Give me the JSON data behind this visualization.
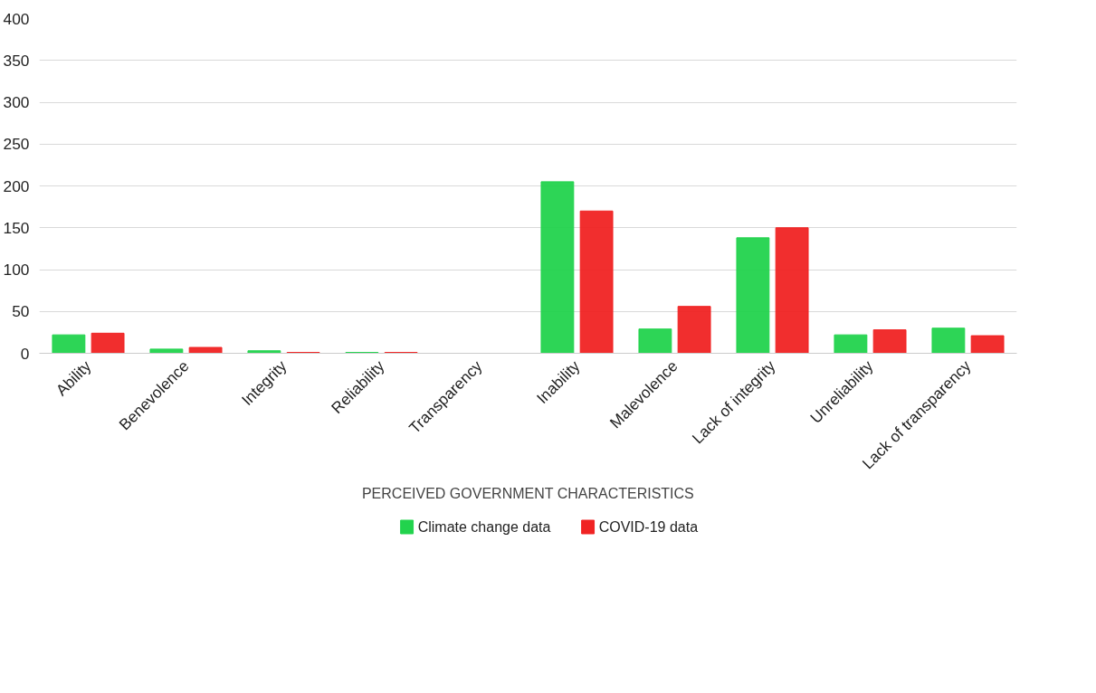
{
  "chart_data": {
    "type": "bar",
    "xlabel": "PERCEIVED GOVERNMENT CHARACTERISTICS",
    "categories": [
      "Ability",
      "Benevolence",
      "Integrity",
      "Reliability",
      "Transparency",
      "Inability",
      "Malevolence",
      "Lack of integrity",
      "Unreliability",
      "Lack of transparency"
    ],
    "series": [
      {
        "name": "Climate change data",
        "color": "#22d34d",
        "values": [
          22,
          5,
          3,
          1,
          0,
          205,
          29,
          138,
          22,
          30
        ]
      },
      {
        "name": "COVID-19 data",
        "color": "#f02323",
        "values": [
          24,
          7,
          1,
          1,
          0,
          170,
          56,
          150,
          28,
          21
        ]
      }
    ],
    "ylim": [
      0,
      400
    ],
    "yticks": [
      0,
      50,
      100,
      150,
      200,
      250,
      300,
      350,
      400
    ],
    "grid": "y",
    "legend": "bottom"
  }
}
